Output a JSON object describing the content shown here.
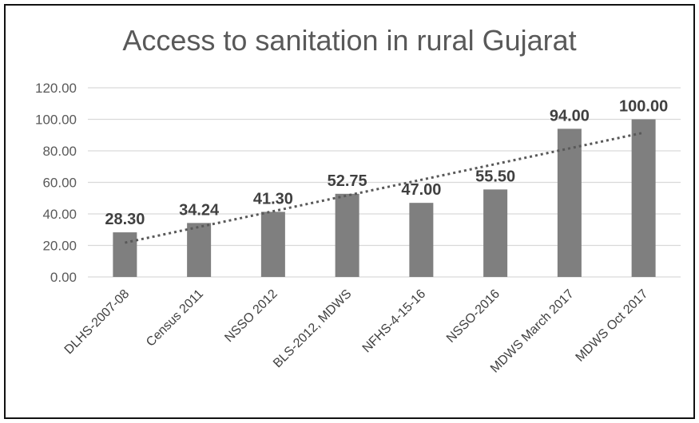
{
  "chart_data": {
    "type": "bar",
    "title": "Access to sanitation in rural Gujarat",
    "xlabel": "",
    "ylabel": "",
    "categories": [
      "DLHS-2007-08",
      "Census 2011",
      "NSSO 2012",
      "BLS-2012, MDWS",
      "NFHS-4-15-16",
      "NSSO-2016",
      "MDWS March 2017",
      "MDWS Oct 2017"
    ],
    "values": [
      28.3,
      34.24,
      41.3,
      52.75,
      47.0,
      55.5,
      94.0,
      100.0
    ],
    "data_labels": [
      "28.30",
      "34.24",
      "41.30",
      "52.75",
      "47.00",
      "55.50",
      "94.00",
      "100.00"
    ],
    "ylim": [
      0,
      120
    ],
    "yticks": [
      "0.00",
      "20.00",
      "40.00",
      "60.00",
      "80.00",
      "100.00",
      "120.00"
    ],
    "grid": true,
    "trendline": "linear",
    "colors": {
      "bar": "#7f7f7f",
      "grid": "#d9d9d9",
      "trend": "#595959",
      "frame": "#111111"
    }
  }
}
